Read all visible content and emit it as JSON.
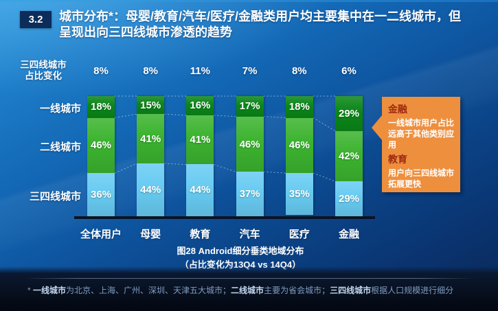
{
  "slide": {
    "section_number": "3.2",
    "title": "城市分布*：母婴/教育/汽车/医疗/金融类用户均主要集中在一二线城市，但呈现出向三四线城市渗透的趋势"
  },
  "chart_data": {
    "type": "bar",
    "stacked": true,
    "unit": "%",
    "ylim": [
      0,
      100
    ],
    "categories": [
      "全体用户",
      "母婴",
      "教育",
      "汽车",
      "医疗",
      "金融"
    ],
    "series": [
      {
        "name": "一线城市",
        "color": "#0b8618",
        "values": [
          18,
          15,
          16,
          17,
          18,
          29
        ]
      },
      {
        "name": "二线城市",
        "color": "#3cb32f",
        "values": [
          46,
          41,
          41,
          46,
          46,
          42
        ]
      },
      {
        "name": "三四线城市",
        "color": "#68cbf2",
        "values": [
          36,
          44,
          44,
          37,
          35,
          29
        ]
      }
    ],
    "change_row": {
      "label_line1": "三四线城市",
      "label_line2": "占比变化",
      "values": [
        "8%",
        "8%",
        "11%",
        "7%",
        "8%",
        "6%"
      ]
    },
    "caption": "图28 Android细分垂类地域分布",
    "caption_note": "（占比变化为13Q4 vs 14Q4）",
    "connector_color": "rgba(225,238,250,0.55)"
  },
  "callout": {
    "accent_color": "#ee8f3e",
    "items": [
      {
        "heading": "金融",
        "body": "一线城市用户占比远高于其他类别应用"
      },
      {
        "heading": "教育",
        "body": "用户向三四线城市拓展更快"
      }
    ]
  },
  "footnote": {
    "segments": [
      {
        "text": "* ",
        "bold": false
      },
      {
        "text": "一线城市",
        "bold": true
      },
      {
        "text": "为北京、上海、广州、深圳、天津五大城市；",
        "bold": false
      },
      {
        "text": "二线城市",
        "bold": true
      },
      {
        "text": "主要为省会城市；",
        "bold": false
      },
      {
        "text": "三四线城市",
        "bold": true
      },
      {
        "text": "根据人口规模进行细分",
        "bold": false
      }
    ]
  }
}
